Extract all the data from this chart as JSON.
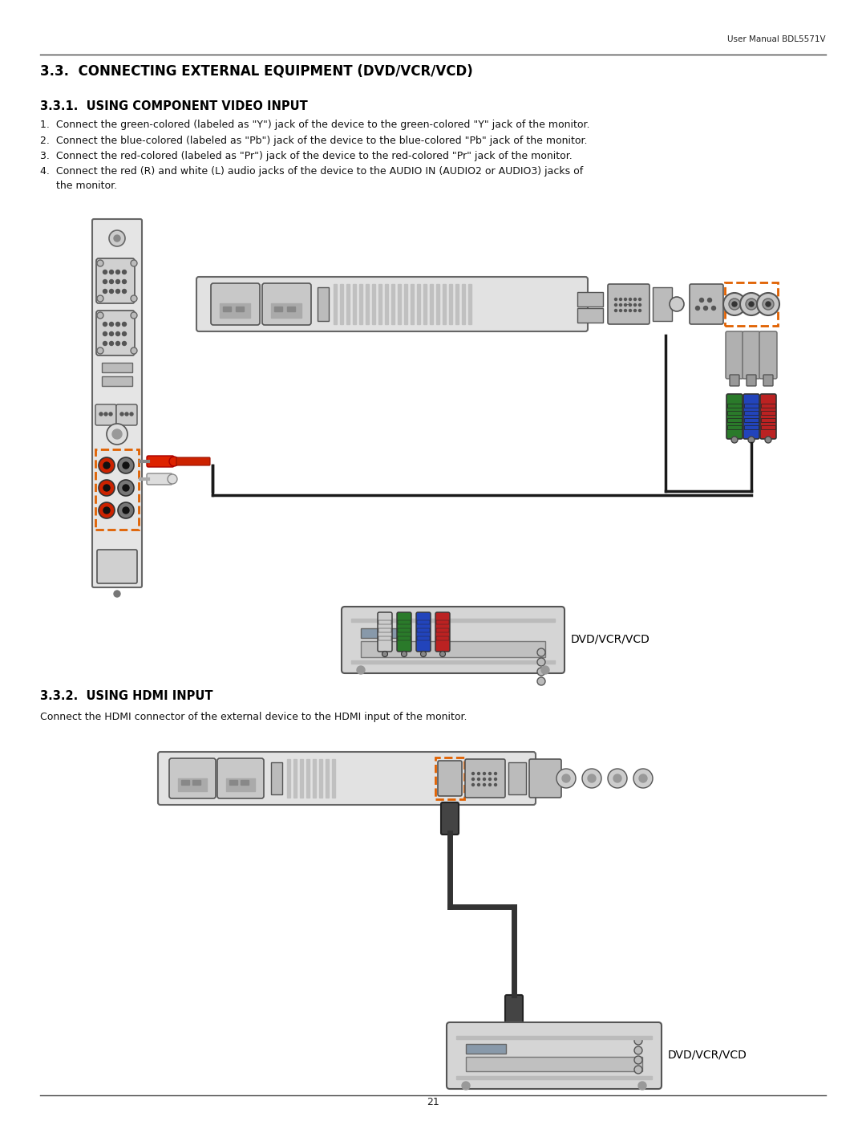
{
  "page_title": "User Manual BDL5571V",
  "page_number": "21",
  "section_title": "3.3.  CONNECTING EXTERNAL EQUIPMENT (DVD/VCR/VCD)",
  "subsection1_title": "3.3.1.  USING COMPONENT VIDEO INPUT",
  "subsection1_items": [
    "1.  Connect the green-colored (labeled as \"Y\") jack of the device to the green-colored \"Y\" jack of the monitor.",
    "2.  Connect the blue-colored (labeled as \"Pb\") jack of the device to the blue-colored \"Pb\" jack of the monitor.",
    "3.  Connect the red-colored (labeled as \"Pr\") jack of the device to the red-colored \"Pr\" jack of the monitor.",
    "4.  Connect the red (R) and white (L) audio jacks of the device to the AUDIO IN (AUDIO2 or AUDIO3) jacks of",
    "     the monitor."
  ],
  "subsection2_title": "3.3.2.  USING HDMI INPUT",
  "subsection2_text": "Connect the HDMI connector of the external device to the HDMI input of the monitor.",
  "dvd_label": "DVD/VCR/VCD",
  "bg_color": "#ffffff",
  "text_color": "#000000",
  "orange_dash_color": "#e06000",
  "gray_panel": "#d8d8d8",
  "gray_connector": "#b8b8b8",
  "dark_gray": "#555555",
  "cable_black": "#1a1a1a"
}
